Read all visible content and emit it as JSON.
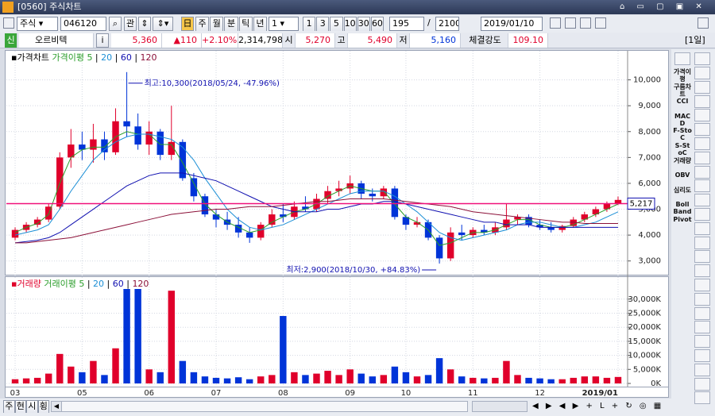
{
  "window": {
    "title": "[0560] 주식차트"
  },
  "toolbar": {
    "market": "주식",
    "code": "046120",
    "watch": "관",
    "periods": [
      "주",
      "월",
      "분",
      "틱",
      "년"
    ],
    "period_value": "1",
    "intervals": [
      "1",
      "3",
      "5",
      "10",
      "30",
      "60"
    ],
    "count": "195",
    "separator": "/",
    "total": "2100",
    "date": "2019/01/10"
  },
  "info": {
    "badge": "신",
    "name": "오르비텍",
    "info_button": "i",
    "price": "5,360",
    "change": "▲110",
    "change_pct": "+2.10%",
    "volume": "2,314,798",
    "open_label": "시",
    "open": "5,270",
    "high_label": "고",
    "high": "5,490",
    "low_label": "저",
    "low": "5,160",
    "strength_label": "체결강도",
    "strength": "109.10",
    "period_tag": "[1일]"
  },
  "indicators": [
    "가격이평",
    "구름차트",
    "CCI",
    "MACD",
    "F-StoC",
    "S-StoC",
    "거래량",
    "OBV",
    "심리도",
    "Boll Band",
    "Pivot"
  ],
  "bottom_tabs": [
    "주",
    "현",
    "시",
    "횡"
  ],
  "price_chart": {
    "type": "candlestick",
    "title": "가격차트",
    "ma_label": "가격이평",
    "up_color": "#e0002b",
    "down_color": "#0034d8",
    "categories": [
      "03",
      null,
      null,
      null,
      null,
      null,
      "05",
      null,
      null,
      null,
      null,
      null,
      "06",
      null,
      null,
      null,
      null,
      null,
      "07",
      null,
      null,
      null,
      null,
      null,
      "08",
      null,
      null,
      null,
      null,
      null,
      "09",
      null,
      null,
      null,
      null,
      "10",
      null,
      null,
      null,
      null,
      null,
      "11",
      null,
      null,
      null,
      null,
      null,
      "12",
      null,
      null,
      null,
      null,
      null,
      null,
      "2019/01"
    ],
    "candles": [
      [
        3900,
        4300,
        3800,
        4200
      ],
      [
        4200,
        4500,
        4100,
        4400
      ],
      [
        4400,
        4700,
        4300,
        4600
      ],
      [
        4600,
        5200,
        4500,
        5100
      ],
      [
        5100,
        7200,
        5000,
        7000
      ],
      [
        7000,
        8100,
        6600,
        7500
      ],
      [
        7500,
        8000,
        6900,
        7300
      ],
      [
        7300,
        8300,
        6800,
        7700
      ],
      [
        7700,
        8000,
        6900,
        7200
      ],
      [
        7200,
        8900,
        7100,
        8400
      ],
      [
        8400,
        10300,
        7800,
        8200
      ],
      [
        8200,
        8700,
        7300,
        7500
      ],
      [
        7500,
        8400,
        7100,
        8000
      ],
      [
        8000,
        8100,
        6900,
        7100
      ],
      [
        7100,
        9000,
        6900,
        7600
      ],
      [
        7600,
        7700,
        6100,
        6200
      ],
      [
        6200,
        6400,
        5300,
        5500
      ],
      [
        5500,
        5600,
        4700,
        4800
      ],
      [
        4800,
        5000,
        4300,
        4600
      ],
      [
        4600,
        4900,
        4200,
        4400
      ],
      [
        4400,
        4700,
        3900,
        4100
      ],
      [
        4100,
        4300,
        3700,
        3900
      ],
      [
        3900,
        4500,
        3800,
        4400
      ],
      [
        4400,
        5000,
        4300,
        4800
      ],
      [
        4800,
        5200,
        4500,
        4700
      ],
      [
        4700,
        5300,
        4600,
        5100
      ],
      [
        5100,
        5500,
        4900,
        5000
      ],
      [
        5000,
        5600,
        4900,
        5400
      ],
      [
        5400,
        5900,
        5200,
        5700
      ],
      [
        5700,
        6100,
        5500,
        5800
      ],
      [
        5800,
        6300,
        5600,
        6000
      ],
      [
        6000,
        6100,
        5400,
        5600
      ],
      [
        5600,
        5800,
        5300,
        5500
      ],
      [
        5500,
        5900,
        5400,
        5800
      ],
      [
        5800,
        5900,
        4600,
        4700
      ],
      [
        4700,
        4800,
        4200,
        4400
      ],
      [
        4400,
        4700,
        4300,
        4500
      ],
      [
        4500,
        4600,
        3800,
        3900
      ],
      [
        3900,
        4000,
        2900,
        3100
      ],
      [
        3100,
        4300,
        3000,
        4100
      ],
      [
        4100,
        4400,
        3800,
        4000
      ],
      [
        4000,
        4300,
        3900,
        4200
      ],
      [
        4200,
        4400,
        4000,
        4100
      ],
      [
        4100,
        4500,
        4000,
        4300
      ],
      [
        4300,
        5200,
        4200,
        4600
      ],
      [
        4600,
        4800,
        4400,
        4700
      ],
      [
        4700,
        4800,
        4300,
        4400
      ],
      [
        4400,
        4600,
        4200,
        4300
      ],
      [
        4300,
        4500,
        4100,
        4200
      ],
      [
        4200,
        4400,
        4100,
        4350
      ],
      [
        4350,
        4700,
        4300,
        4600
      ],
      [
        4600,
        4900,
        4500,
        4800
      ],
      [
        4800,
        5100,
        4700,
        5000
      ],
      [
        5000,
        5300,
        4900,
        5200
      ],
      [
        5200,
        5490,
        5160,
        5360
      ]
    ],
    "series": [
      {
        "name": "5",
        "color": "#2a9d2a",
        "values": [
          4100,
          4300,
          4450,
          4800,
          6000,
          7000,
          7300,
          7400,
          7400,
          7800,
          8000,
          7900,
          7900,
          7500,
          7500,
          6800,
          6000,
          5200,
          4800,
          4500,
          4300,
          4100,
          4200,
          4500,
          4700,
          4900,
          5000,
          5200,
          5500,
          5700,
          5900,
          5800,
          5700,
          5700,
          5200,
          4700,
          4500,
          4200,
          3600,
          3700,
          3900,
          4100,
          4100,
          4200,
          4400,
          4600,
          4600,
          4400,
          4300,
          4300,
          4400,
          4600,
          4800,
          5000,
          5200
        ]
      },
      {
        "name": "20",
        "color": "#1c8fd6",
        "values": [
          4000,
          4100,
          4200,
          4400,
          5000,
          5700,
          6300,
          6900,
          7300,
          7600,
          7800,
          7900,
          7900,
          7800,
          7700,
          7400,
          6900,
          6200,
          5600,
          5000,
          4600,
          4300,
          4200,
          4300,
          4400,
          4600,
          4800,
          5000,
          5200,
          5400,
          5600,
          5700,
          5700,
          5700,
          5500,
          5200,
          4900,
          4500,
          4100,
          3900,
          3800,
          3900,
          4000,
          4100,
          4200,
          4400,
          4500,
          4500,
          4400,
          4300,
          4300,
          4400,
          4500,
          4700,
          4900
        ]
      },
      {
        "name": "60",
        "color": "#1010b0",
        "values": [
          3700,
          3750,
          3800,
          3900,
          4100,
          4400,
          4700,
          5000,
          5300,
          5600,
          5900,
          6100,
          6300,
          6400,
          6400,
          6400,
          6300,
          6200,
          6100,
          5900,
          5700,
          5500,
          5300,
          5100,
          5000,
          4900,
          4900,
          4900,
          5000,
          5000,
          5100,
          5200,
          5200,
          5300,
          5300,
          5200,
          5100,
          5000,
          4900,
          4800,
          4700,
          4600,
          4500,
          4500,
          4400,
          4400,
          4400,
          4300,
          4300,
          4300,
          4300,
          4300,
          4300,
          4300,
          4300
        ]
      },
      {
        "name": "120",
        "color": "#8b1038",
        "values": [
          3700,
          3700,
          3750,
          3800,
          3850,
          3900,
          4000,
          4100,
          4200,
          4300,
          4400,
          4500,
          4600,
          4700,
          4800,
          4850,
          4900,
          4950,
          5000,
          5000,
          5050,
          5100,
          5100,
          5100,
          5150,
          5200,
          5250,
          5300,
          5300,
          5350,
          5400,
          5400,
          5400,
          5400,
          5350,
          5300,
          5250,
          5200,
          5150,
          5100,
          5000,
          4900,
          4850,
          4800,
          4750,
          4700,
          4650,
          4600,
          4550,
          4500,
          4500,
          4450,
          4450,
          4450,
          4450
        ]
      }
    ],
    "ylim": [
      2500,
      11000
    ],
    "yticks": [
      {
        "value": 3000,
        "label": "3,000"
      },
      {
        "value": 4000,
        "label": "4,000"
      },
      {
        "value": 5000,
        "label": "5,000"
      },
      {
        "value": 6000,
        "label": "6,000"
      },
      {
        "value": 7000,
        "label": "7,000"
      },
      {
        "value": 8000,
        "label": "8,000"
      },
      {
        "value": 9000,
        "label": "9,000"
      },
      {
        "value": 10000,
        "label": "10,000"
      }
    ],
    "grid": true,
    "high_note": {
      "value": 10300,
      "index": 10,
      "text": "최고:10,300(2018/05/24, -47.96%)"
    },
    "low_note": {
      "value": 2900,
      "index": 38,
      "text": "최저:2,900(2018/10/30, +84.83%)"
    },
    "current_line": {
      "value": 5217,
      "label": "5,217",
      "color": "#f0107a"
    }
  },
  "volume_chart": {
    "type": "bar",
    "title": "거래량",
    "ma_label": "거래이평",
    "ma_legend": [
      {
        "name": "5",
        "color": "#2a9d2a"
      },
      {
        "name": "20",
        "color": "#1c8fd6"
      },
      {
        "name": "60",
        "color": "#1010b0"
      },
      {
        "name": "120",
        "color": "#8b1038"
      }
    ],
    "values": [
      1500000,
      1800000,
      2000000,
      3500000,
      10500000,
      6000000,
      4000000,
      8000000,
      3000000,
      12500000,
      34000000,
      34000000,
      5000000,
      4000000,
      33000000,
      8000000,
      4000000,
      2500000,
      2000000,
      1800000,
      2200000,
      1500000,
      2500000,
      3000000,
      24000000,
      4000000,
      3000000,
      3500000,
      4500000,
      3000000,
      5000000,
      3500000,
      2500000,
      3000000,
      6000000,
      4000000,
      2500000,
      3000000,
      9000000,
      5000000,
      2500000,
      2000000,
      1800000,
      2000000,
      8000000,
      3000000,
      2000000,
      1800000,
      1500000,
      1500000,
      2000000,
      2500000,
      2500000,
      2000000,
      2314798
    ],
    "ylim": [
      0,
      37000000
    ],
    "yticks": [
      {
        "value": 0,
        "label": "0K"
      },
      {
        "value": 5000000,
        "label": "5,000K"
      },
      {
        "value": 10000000,
        "label": "10,000K"
      },
      {
        "value": 15000000,
        "label": "15,000K"
      },
      {
        "value": 20000000,
        "label": "20,000K"
      },
      {
        "value": 25000000,
        "label": "25,000K"
      },
      {
        "value": 30000000,
        "label": "30,000K"
      }
    ],
    "grid": true
  }
}
